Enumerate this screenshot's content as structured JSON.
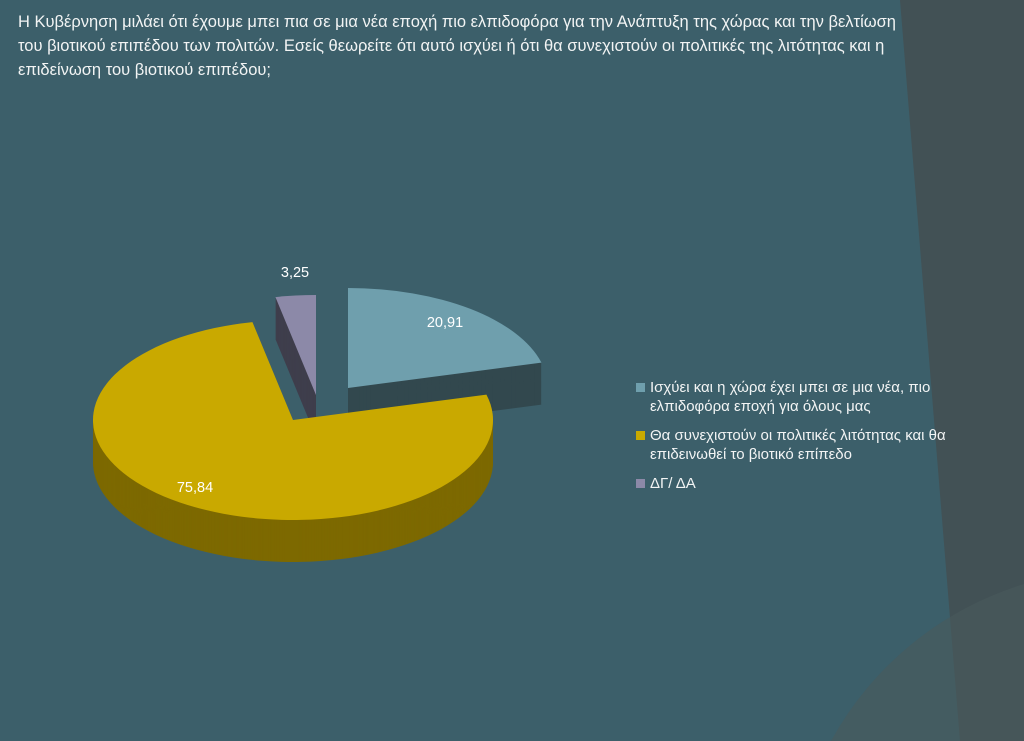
{
  "title": "Η Κυβέρνηση μιλάει ότι έχουμε μπει πια σε μια νέα εποχή πιο ελπιδοφόρα για την Ανάπτυξη της χώρας και την βελτίωση του βιοτικού επιπέδου των πολιτών. Εσείς θεωρείτε ότι αυτό ισχύει ή ότι θα συνεχιστούν οι πολιτικές της λιτότητας και η επιδείνωση του βιοτικού επιπέδου;",
  "chart_data": {
    "type": "pie",
    "style": "3d-exploded",
    "legend_position": "right",
    "slices": [
      {
        "label": "Ισχύει και η χώρα έχει μπει σε μια νέα, πιο ελπιδοφόρα εποχή για όλους μας",
        "value": 20.91,
        "value_label": "20,91",
        "color": "#6f9fad"
      },
      {
        "label": "Θα συνεχιστούν οι πολιτικές λιτότητας και θα επιδεινωθεί το βιοτικό επίπεδο",
        "value": 75.84,
        "value_label": "75,84",
        "color": "#c9a900"
      },
      {
        "label": "ΔΓ/ ΔΑ",
        "value": 3.25,
        "value_label": "3,25",
        "color": "#8c89a8"
      }
    ]
  }
}
